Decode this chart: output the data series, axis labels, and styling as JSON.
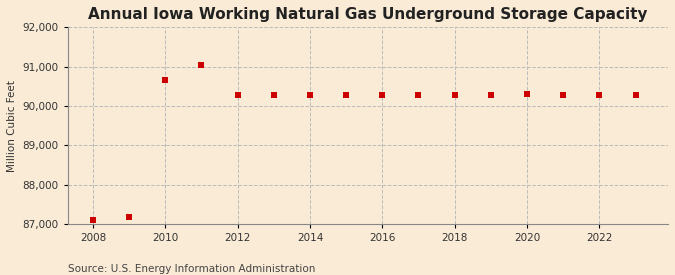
{
  "title": "Annual Iowa Working Natural Gas Underground Storage Capacity",
  "ylabel": "Million Cubic Feet",
  "source": "Source: U.S. Energy Information Administration",
  "background_color": "#faebd7",
  "plot_bg_color": "#faebd7",
  "marker_color": "#cc0000",
  "marker_size": 4,
  "marker_style": "s",
  "years": [
    2008,
    2009,
    2010,
    2011,
    2012,
    2013,
    2014,
    2015,
    2016,
    2017,
    2018,
    2019,
    2020,
    2021,
    2022,
    2023
  ],
  "values": [
    87115,
    87175,
    90660,
    91050,
    90280,
    90280,
    90280,
    90280,
    90280,
    90280,
    90280,
    90280,
    90300,
    90280,
    90280,
    90280
  ],
  "ylim": [
    87000,
    92000
  ],
  "yticks": [
    87000,
    88000,
    89000,
    90000,
    91000,
    92000
  ],
  "xlim": [
    2007.3,
    2023.9
  ],
  "xticks": [
    2008,
    2010,
    2012,
    2014,
    2016,
    2018,
    2020,
    2022
  ],
  "grid_color": "#bbbbbb",
  "grid_linestyle": "--",
  "title_fontsize": 11,
  "label_fontsize": 7.5,
  "tick_fontsize": 7.5,
  "source_fontsize": 7.5
}
